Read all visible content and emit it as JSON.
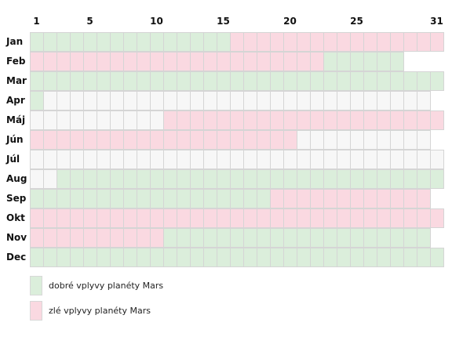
{
  "chart_data": {
    "type": "heatmap",
    "x_ticks": [
      1,
      5,
      10,
      15,
      20,
      25,
      31
    ],
    "months": [
      {
        "label": "Jan",
        "days": 31,
        "segments": [
          {
            "from": 1,
            "to": 15,
            "state": "good"
          },
          {
            "from": 16,
            "to": 31,
            "state": "bad"
          }
        ]
      },
      {
        "label": "Feb",
        "days": 28,
        "segments": [
          {
            "from": 1,
            "to": 22,
            "state": "bad"
          },
          {
            "from": 23,
            "to": 28,
            "state": "good"
          }
        ]
      },
      {
        "label": "Mar",
        "days": 31,
        "segments": [
          {
            "from": 1,
            "to": 31,
            "state": "good"
          }
        ]
      },
      {
        "label": "Apr",
        "days": 30,
        "segments": [
          {
            "from": 1,
            "to": 1,
            "state": "good"
          },
          {
            "from": 2,
            "to": 30,
            "state": "neutral"
          }
        ]
      },
      {
        "label": "Máj",
        "days": 31,
        "segments": [
          {
            "from": 1,
            "to": 10,
            "state": "neutral"
          },
          {
            "from": 11,
            "to": 31,
            "state": "bad"
          }
        ]
      },
      {
        "label": "Jún",
        "days": 30,
        "segments": [
          {
            "from": 1,
            "to": 20,
            "state": "bad"
          },
          {
            "from": 21,
            "to": 30,
            "state": "neutral"
          }
        ]
      },
      {
        "label": "Júl",
        "days": 31,
        "segments": [
          {
            "from": 1,
            "to": 31,
            "state": "neutral"
          }
        ]
      },
      {
        "label": "Aug",
        "days": 31,
        "segments": [
          {
            "from": 1,
            "to": 2,
            "state": "neutral"
          },
          {
            "from": 3,
            "to": 31,
            "state": "good"
          }
        ]
      },
      {
        "label": "Sep",
        "days": 30,
        "segments": [
          {
            "from": 1,
            "to": 18,
            "state": "good"
          },
          {
            "from": 19,
            "to": 30,
            "state": "bad"
          }
        ]
      },
      {
        "label": "Okt",
        "days": 31,
        "segments": [
          {
            "from": 1,
            "to": 31,
            "state": "bad"
          }
        ]
      },
      {
        "label": "Nov",
        "days": 30,
        "segments": [
          {
            "from": 1,
            "to": 10,
            "state": "bad"
          },
          {
            "from": 11,
            "to": 30,
            "state": "good"
          }
        ]
      },
      {
        "label": "Dec",
        "days": 31,
        "segments": [
          {
            "from": 1,
            "to": 31,
            "state": "good"
          }
        ]
      }
    ],
    "states": {
      "good": {
        "color": "#dbeedb",
        "legend": "dobré vplyvy planéty Mars"
      },
      "bad": {
        "color": "#fad9e1",
        "legend": "zlé vplyvy planéty Mars"
      },
      "neutral": {
        "color": "#f7f7f7"
      }
    },
    "grid_color": "#d5d5d5"
  }
}
